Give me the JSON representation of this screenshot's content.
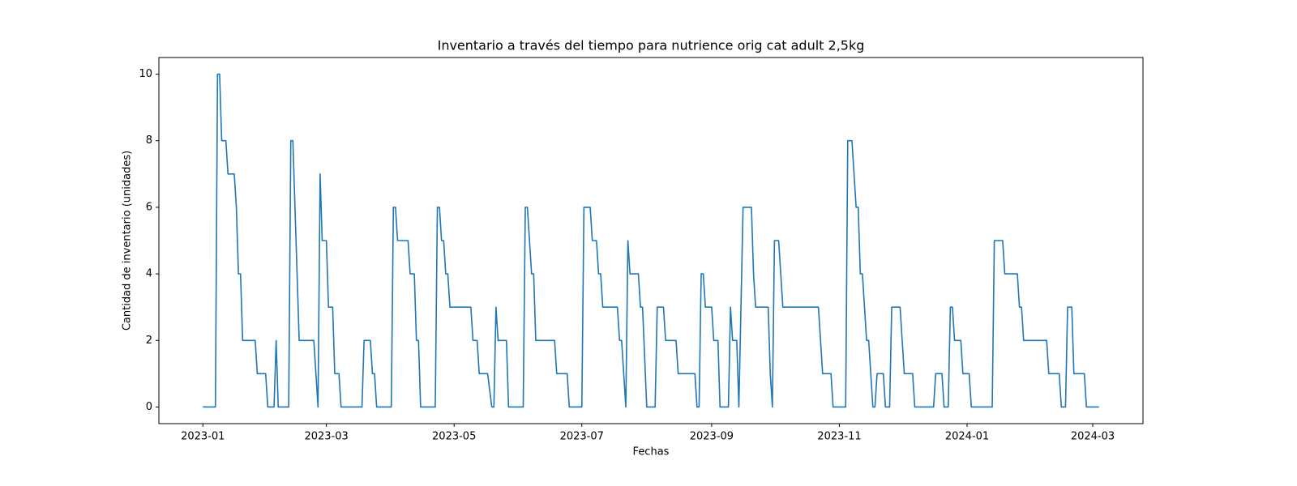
{
  "chart_data": {
    "type": "line",
    "title": "Inventario a través del tiempo para nutrience orig cat adult 2,5kg",
    "x_label": "Fechas",
    "y_label": "Cantidad de inventario (unidades)",
    "color": "#1f77b4",
    "x": [
      "2023-01-01",
      "2023-01-07",
      "2023-01-08",
      "2023-01-09",
      "2023-01-10",
      "2023-01-12",
      "2023-01-13",
      "2023-01-16",
      "2023-01-17",
      "2023-01-18",
      "2023-01-19",
      "2023-01-20",
      "2023-01-26",
      "2023-01-27",
      "2023-01-31",
      "2023-02-01",
      "2023-02-04",
      "2023-02-05",
      "2023-02-06",
      "2023-02-11",
      "2023-02-12",
      "2023-02-13",
      "2023-02-16",
      "2023-02-23",
      "2023-02-25",
      "2023-02-26",
      "2023-02-27",
      "2023-03-01",
      "2023-03-02",
      "2023-03-04",
      "2023-03-05",
      "2023-03-07",
      "2023-03-08",
      "2023-03-18",
      "2023-03-19",
      "2023-03-22",
      "2023-03-23",
      "2023-03-24",
      "2023-03-25",
      "2023-04-01",
      "2023-04-02",
      "2023-04-03",
      "2023-04-04",
      "2023-04-09",
      "2023-04-10",
      "2023-04-12",
      "2023-04-13",
      "2023-04-14",
      "2023-04-15",
      "2023-04-22",
      "2023-04-23",
      "2023-04-24",
      "2023-04-25",
      "2023-04-26",
      "2023-04-27",
      "2023-04-28",
      "2023-04-29",
      "2023-05-09",
      "2023-05-10",
      "2023-05-12",
      "2023-05-13",
      "2023-05-17",
      "2023-05-19",
      "2023-05-20",
      "2023-05-21",
      "2023-05-22",
      "2023-05-26",
      "2023-05-27",
      "2023-06-03",
      "2023-06-04",
      "2023-06-05",
      "2023-06-07",
      "2023-06-08",
      "2023-06-09",
      "2023-06-18",
      "2023-06-19",
      "2023-06-24",
      "2023-06-25",
      "2023-07-01",
      "2023-07-02",
      "2023-07-05",
      "2023-07-06",
      "2023-07-08",
      "2023-07-09",
      "2023-07-10",
      "2023-07-11",
      "2023-07-18",
      "2023-07-19",
      "2023-07-20",
      "2023-07-22",
      "2023-07-23",
      "2023-07-24",
      "2023-07-28",
      "2023-07-29",
      "2023-07-30",
      "2023-08-01",
      "2023-08-05",
      "2023-08-06",
      "2023-08-09",
      "2023-08-10",
      "2023-08-15",
      "2023-08-16",
      "2023-08-24",
      "2023-08-25",
      "2023-08-26",
      "2023-08-27",
      "2023-08-28",
      "2023-08-29",
      "2023-09-01",
      "2023-09-02",
      "2023-09-04",
      "2023-09-05",
      "2023-09-09",
      "2023-09-10",
      "2023-09-11",
      "2023-09-13",
      "2023-09-14",
      "2023-09-16",
      "2023-09-20",
      "2023-09-21",
      "2023-09-22",
      "2023-09-28",
      "2023-09-29",
      "2023-09-30",
      "2023-10-01",
      "2023-10-03",
      "2023-10-05",
      "2023-10-22",
      "2023-10-24",
      "2023-10-28",
      "2023-10-29",
      "2023-11-04",
      "2023-11-05",
      "2023-11-07",
      "2023-11-09",
      "2023-11-10",
      "2023-11-11",
      "2023-11-12",
      "2023-11-14",
      "2023-11-15",
      "2023-11-17",
      "2023-11-18",
      "2023-11-19",
      "2023-11-22",
      "2023-11-23",
      "2023-11-25",
      "2023-11-26",
      "2023-11-30",
      "2023-12-02",
      "2023-12-06",
      "2023-12-07",
      "2023-12-16",
      "2023-12-17",
      "2023-12-20",
      "2023-12-21",
      "2023-12-23",
      "2023-12-24",
      "2023-12-25",
      "2023-12-26",
      "2023-12-29",
      "2023-12-30",
      "2024-01-02",
      "2024-01-03",
      "2024-01-13",
      "2024-01-14",
      "2024-01-18",
      "2024-01-19",
      "2024-01-25",
      "2024-01-26",
      "2024-01-27",
      "2024-01-28",
      "2024-02-08",
      "2024-02-09",
      "2024-02-14",
      "2024-02-15",
      "2024-02-17",
      "2024-02-18",
      "2024-02-20",
      "2024-02-21",
      "2024-02-26",
      "2024-02-27",
      "2024-03-04"
    ],
    "values": [
      0,
      0,
      10,
      10,
      8,
      8,
      7,
      7,
      6,
      4,
      4,
      2,
      2,
      1,
      1,
      0,
      0,
      2,
      0,
      0,
      8,
      8,
      2,
      2,
      0,
      7,
      5,
      5,
      3,
      3,
      1,
      1,
      0,
      0,
      2,
      2,
      1,
      1,
      0,
      0,
      6,
      6,
      5,
      5,
      4,
      4,
      2,
      2,
      0,
      0,
      6,
      6,
      5,
      5,
      4,
      4,
      3,
      3,
      2,
      2,
      1,
      1,
      0,
      0,
      3,
      2,
      2,
      0,
      0,
      6,
      6,
      4,
      4,
      2,
      2,
      1,
      1,
      0,
      0,
      6,
      6,
      5,
      5,
      4,
      4,
      3,
      3,
      2,
      2,
      0,
      5,
      4,
      4,
      3,
      3,
      0,
      0,
      3,
      3,
      2,
      2,
      1,
      1,
      0,
      0,
      4,
      4,
      3,
      3,
      2,
      2,
      0,
      0,
      3,
      2,
      2,
      0,
      6,
      6,
      4,
      3,
      3,
      1,
      0,
      5,
      5,
      3,
      3,
      1,
      1,
      0,
      0,
      8,
      8,
      6,
      6,
      4,
      4,
      2,
      2,
      0,
      0,
      1,
      1,
      0,
      0,
      3,
      3,
      1,
      1,
      0,
      0,
      1,
      1,
      0,
      0,
      3,
      3,
      2,
      2,
      1,
      1,
      0,
      0,
      5,
      5,
      4,
      4,
      3,
      3,
      2,
      2,
      1,
      1,
      0,
      0,
      3,
      3,
      1,
      1,
      0,
      0
    ],
    "xlim": [
      "2022-12-11",
      "2024-03-25"
    ],
    "xticks": [
      {
        "value": "2023-01-01",
        "label": "2023-01"
      },
      {
        "value": "2023-03-01",
        "label": "2023-03"
      },
      {
        "value": "2023-05-01",
        "label": "2023-05"
      },
      {
        "value": "2023-07-01",
        "label": "2023-07"
      },
      {
        "value": "2023-09-01",
        "label": "2023-09"
      },
      {
        "value": "2023-11-01",
        "label": "2023-11"
      },
      {
        "value": "2024-01-01",
        "label": "2024-01"
      },
      {
        "value": "2024-03-01",
        "label": "2024-03"
      }
    ],
    "ylim": [
      -0.5,
      10.5
    ],
    "yticks": [
      0,
      2,
      4,
      6,
      8,
      10
    ]
  }
}
